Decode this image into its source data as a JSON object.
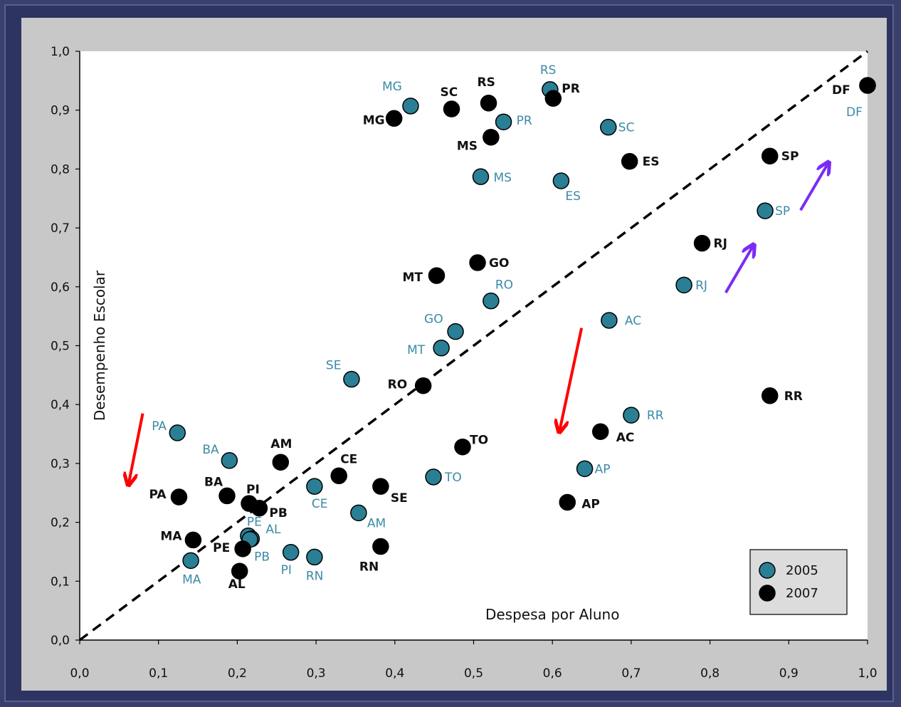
{
  "chart_data": {
    "type": "scatter",
    "xlabel": "Despesa por Aluno",
    "ylabel": "Desempenho Escolar",
    "xlim": [
      0.0,
      1.0
    ],
    "ylim": [
      0.0,
      1.0
    ],
    "x_ticks": [
      "0,0",
      "0,1",
      "0,2",
      "0,3",
      "0,4",
      "0,5",
      "0,6",
      "0,7",
      "0,8",
      "0,9",
      "1,0"
    ],
    "y_ticks": [
      "0,0",
      "0,1",
      "0,2",
      "0,3",
      "0,4",
      "0,5",
      "0,6",
      "0,7",
      "0,8",
      "0,9",
      "1,0"
    ],
    "grid": false,
    "legend_position": "bottom-right",
    "reference_line": {
      "style": "dashed",
      "from": [
        0.0,
        0.0
      ],
      "to": [
        1.0,
        1.0
      ]
    },
    "series": [
      {
        "name": "2005",
        "color": "#2a7f95",
        "label_color": "#3a8aa5",
        "points": [
          {
            "label": "MG",
            "x": 0.42,
            "y": 0.907
          },
          {
            "label": "RS",
            "x": 0.597,
            "y": 0.935
          },
          {
            "label": "PR",
            "x": 0.538,
            "y": 0.88
          },
          {
            "label": "SC",
            "x": 0.671,
            "y": 0.871
          },
          {
            "label": "DF",
            "x": 1.0,
            "y": 0.942
          },
          {
            "label": "MS",
            "x": 0.509,
            "y": 0.787
          },
          {
            "label": "ES",
            "x": 0.611,
            "y": 0.78
          },
          {
            "label": "SP",
            "x": 0.87,
            "y": 0.729
          },
          {
            "label": "RJ",
            "x": 0.767,
            "y": 0.603
          },
          {
            "label": "RO",
            "x": 0.522,
            "y": 0.576
          },
          {
            "label": "AC",
            "x": 0.672,
            "y": 0.543
          },
          {
            "label": "GO",
            "x": 0.477,
            "y": 0.524
          },
          {
            "label": "MT",
            "x": 0.459,
            "y": 0.496
          },
          {
            "label": "SE",
            "x": 0.345,
            "y": 0.443
          },
          {
            "label": "RR",
            "x": 0.7,
            "y": 0.382
          },
          {
            "label": "PA",
            "x": 0.124,
            "y": 0.352
          },
          {
            "label": "BA",
            "x": 0.19,
            "y": 0.305
          },
          {
            "label": "AP",
            "x": 0.641,
            "y": 0.291
          },
          {
            "label": "TO",
            "x": 0.449,
            "y": 0.277
          },
          {
            "label": "CE",
            "x": 0.298,
            "y": 0.261
          },
          {
            "label": "AM",
            "x": 0.354,
            "y": 0.216
          },
          {
            "label": "PE",
            "x": 0.214,
            "y": 0.177
          },
          {
            "label": "AL",
            "x": 0.218,
            "y": 0.172
          },
          {
            "label": "PB",
            "x": 0.216,
            "y": 0.171
          },
          {
            "label": "PI",
            "x": 0.268,
            "y": 0.149
          },
          {
            "label": "RN",
            "x": 0.298,
            "y": 0.141
          },
          {
            "label": "MA",
            "x": 0.141,
            "y": 0.135
          }
        ]
      },
      {
        "name": "2007",
        "color": "#000000",
        "label_color": "#111111",
        "points": [
          {
            "label": "RS",
            "x": 0.519,
            "y": 0.912
          },
          {
            "label": "SC",
            "x": 0.472,
            "y": 0.902
          },
          {
            "label": "MG",
            "x": 0.399,
            "y": 0.886
          },
          {
            "label": "PR",
            "x": 0.601,
            "y": 0.92
          },
          {
            "label": "DF",
            "x": 1.0,
            "y": 0.942
          },
          {
            "label": "MS",
            "x": 0.522,
            "y": 0.854
          },
          {
            "label": "SP",
            "x": 0.876,
            "y": 0.822
          },
          {
            "label": "ES",
            "x": 0.698,
            "y": 0.813
          },
          {
            "label": "RJ",
            "x": 0.79,
            "y": 0.674
          },
          {
            "label": "GO",
            "x": 0.505,
            "y": 0.641
          },
          {
            "label": "MT",
            "x": 0.453,
            "y": 0.619
          },
          {
            "label": "RO",
            "x": 0.436,
            "y": 0.432
          },
          {
            "label": "RR",
            "x": 0.876,
            "y": 0.415
          },
          {
            "label": "AC",
            "x": 0.661,
            "y": 0.354
          },
          {
            "label": "TO",
            "x": 0.486,
            "y": 0.328
          },
          {
            "label": "AM",
            "x": 0.255,
            "y": 0.302
          },
          {
            "label": "CE",
            "x": 0.329,
            "y": 0.279
          },
          {
            "label": "SE",
            "x": 0.382,
            "y": 0.261
          },
          {
            "label": "PA",
            "x": 0.126,
            "y": 0.243
          },
          {
            "label": "BA",
            "x": 0.187,
            "y": 0.245
          },
          {
            "label": "PI",
            "x": 0.215,
            "y": 0.232
          },
          {
            "label": "PB",
            "x": 0.228,
            "y": 0.224
          },
          {
            "label": "AP",
            "x": 0.619,
            "y": 0.234
          },
          {
            "label": "MA",
            "x": 0.144,
            "y": 0.17
          },
          {
            "label": "RN",
            "x": 0.382,
            "y": 0.159
          },
          {
            "label": "PE",
            "x": 0.207,
            "y": 0.155
          },
          {
            "label": "AL",
            "x": 0.203,
            "y": 0.117
          }
        ]
      }
    ],
    "annotations": [
      {
        "type": "arrow",
        "color": "#ff0000",
        "from": [
          0.08,
          0.385
        ],
        "to": [
          0.062,
          0.265
        ]
      },
      {
        "type": "arrow",
        "color": "#ff0000",
        "from": [
          0.637,
          0.53
        ],
        "to": [
          0.609,
          0.355
        ]
      },
      {
        "type": "arrow",
        "color": "#7a2cf5",
        "from": [
          0.82,
          0.59
        ],
        "to": [
          0.855,
          0.67
        ]
      },
      {
        "type": "arrow",
        "color": "#7a2cf5",
        "from": [
          0.915,
          0.73
        ],
        "to": [
          0.95,
          0.81
        ]
      }
    ]
  }
}
